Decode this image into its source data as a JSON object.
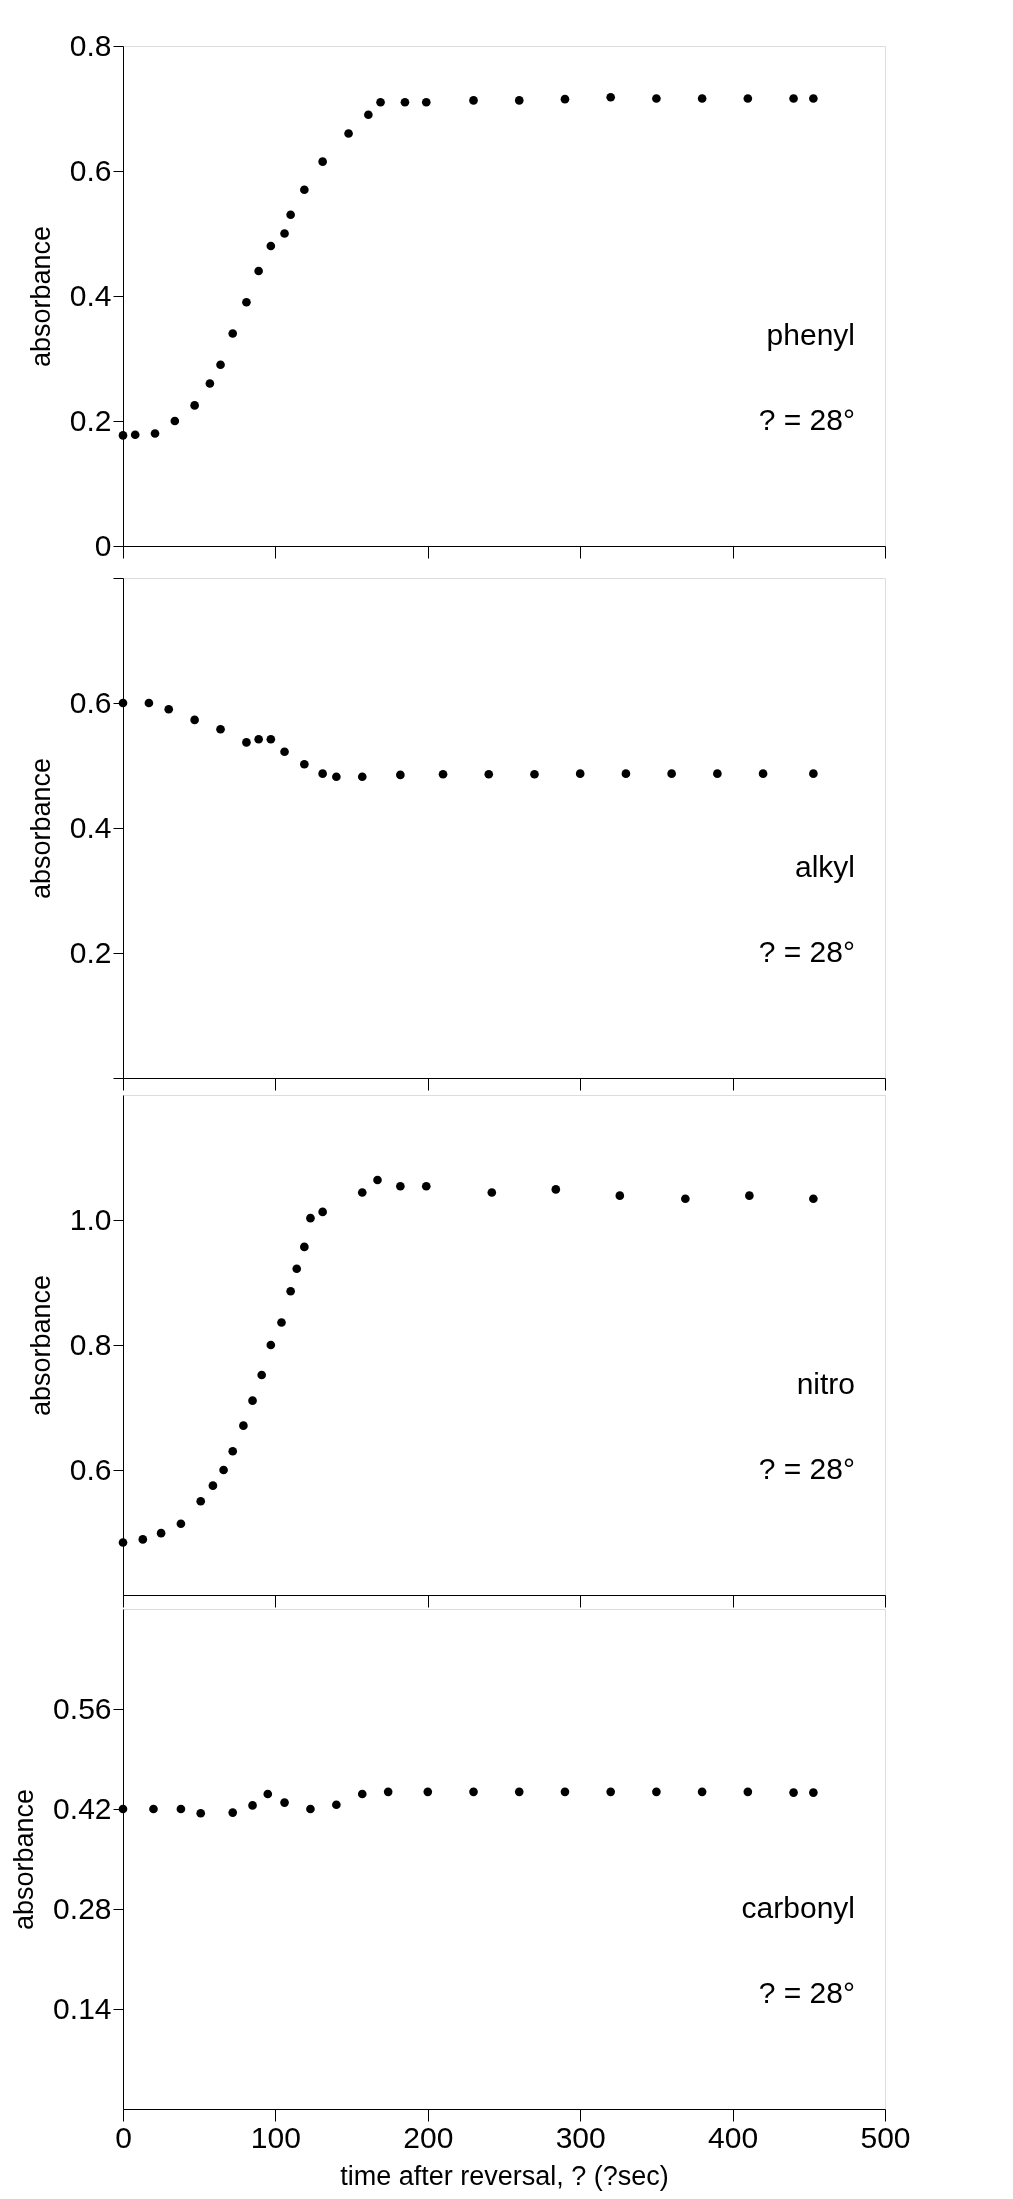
{
  "chart_data": [
    {
      "type": "scatter",
      "ylabel": "absorbance",
      "xlim": [
        0,
        500
      ],
      "xticks": [
        0,
        100,
        200,
        300,
        400,
        500
      ],
      "ylim": [
        0,
        0.8
      ],
      "yticks": [
        0,
        0.2,
        0.4,
        0.6,
        0.8
      ],
      "tick_labels": "y",
      "marker": "circle",
      "annotations": [
        "phenyl",
        "? = 28°"
      ],
      "x": [
        0,
        8,
        21,
        34,
        47,
        57,
        64,
        72,
        81,
        89,
        97,
        106,
        110,
        119,
        131,
        148,
        161,
        169,
        185,
        199,
        230,
        260,
        290,
        320,
        350,
        380,
        410,
        440,
        453
      ],
      "series": [
        {
          "color": "#000000",
          "values": [
            0.177,
            0.178,
            0.18,
            0.2,
            0.225,
            0.26,
            0.29,
            0.34,
            0.39,
            0.44,
            0.48,
            0.5,
            0.53,
            0.57,
            0.615,
            0.66,
            0.69,
            0.71,
            0.71,
            0.71,
            0.713,
            0.713,
            0.715,
            0.718,
            0.716,
            0.716,
            0.716,
            0.716,
            0.716
          ]
        }
      ]
    },
    {
      "type": "scatter",
      "ylabel": "absorbance",
      "xlim": [
        0,
        500
      ],
      "xticks": [
        0,
        100,
        200,
        300,
        400,
        500
      ],
      "ylim": [
        0,
        0.8
      ],
      "yticks": [
        {
          "value": 0,
          "label": null
        },
        0.2,
        0.4,
        0.6,
        {
          "value": 0.8,
          "label": null
        }
      ],
      "tick_labels": "y",
      "marker": "circle",
      "annotations": [
        "alkyl",
        "? = 28°"
      ],
      "x": [
        0,
        17,
        30,
        47,
        64,
        81,
        89,
        97,
        106,
        119,
        131,
        140,
        157,
        182,
        210,
        240,
        270,
        300,
        330,
        360,
        390,
        420,
        453
      ],
      "series": [
        {
          "color": "#000000",
          "values": [
            0.6,
            0.6,
            0.59,
            0.573,
            0.558,
            0.537,
            0.542,
            0.542,
            0.522,
            0.502,
            0.487,
            0.482,
            0.482,
            0.485,
            0.486,
            0.486,
            0.486,
            0.487,
            0.487,
            0.487,
            0.487,
            0.487,
            0.487
          ]
        }
      ]
    },
    {
      "type": "scatter",
      "ylabel": "absorbance",
      "xlim": [
        0,
        500
      ],
      "xticks": [
        0,
        100,
        200,
        300,
        400,
        500
      ],
      "ylim": [
        0.4,
        1.2
      ],
      "yticks": [
        0.6,
        0.8,
        {
          "value": 1.0,
          "label": "1.0"
        }
      ],
      "tick_labels": "y",
      "marker": "circle",
      "annotations": [
        "nitro",
        "? = 28°"
      ],
      "x": [
        0,
        13,
        25,
        38,
        51,
        59,
        66,
        72,
        79,
        85,
        91,
        97,
        104,
        110,
        114,
        119,
        123,
        131,
        157,
        167,
        182,
        199,
        242,
        284,
        326,
        369,
        411,
        453
      ],
      "series": [
        {
          "color": "#000000",
          "values": [
            0.484,
            0.489,
            0.499,
            0.514,
            0.55,
            0.575,
            0.6,
            0.63,
            0.671,
            0.711,
            0.752,
            0.8,
            0.836,
            0.886,
            0.922,
            0.957,
            1.003,
            1.013,
            1.044,
            1.064,
            1.054,
            1.054,
            1.044,
            1.049,
            1.039,
            1.034,
            1.039,
            1.034
          ]
        }
      ]
    },
    {
      "type": "scatter",
      "ylabel": "absorbance",
      "xlabel": "time after reversal, ? (?sec)",
      "xlim": [
        0,
        500
      ],
      "xticks": [
        0,
        100,
        200,
        300,
        400,
        500
      ],
      "ylim": [
        0,
        0.7
      ],
      "yticks": [
        0.14,
        0.28,
        0.42,
        0.56
      ],
      "marker": "circle",
      "annotations": [
        "carbonyl",
        "? = 28°"
      ],
      "x": [
        0,
        20,
        38,
        51,
        72,
        85,
        95,
        106,
        123,
        140,
        157,
        174,
        200,
        230,
        260,
        290,
        320,
        350,
        380,
        410,
        440,
        453
      ],
      "series": [
        {
          "color": "#000000",
          "values": [
            0.42,
            0.42,
            0.42,
            0.414,
            0.415,
            0.425,
            0.441,
            0.429,
            0.42,
            0.426,
            0.441,
            0.444,
            0.444,
            0.444,
            0.444,
            0.444,
            0.444,
            0.444,
            0.444,
            0.444,
            0.443,
            0.443
          ]
        }
      ]
    }
  ]
}
